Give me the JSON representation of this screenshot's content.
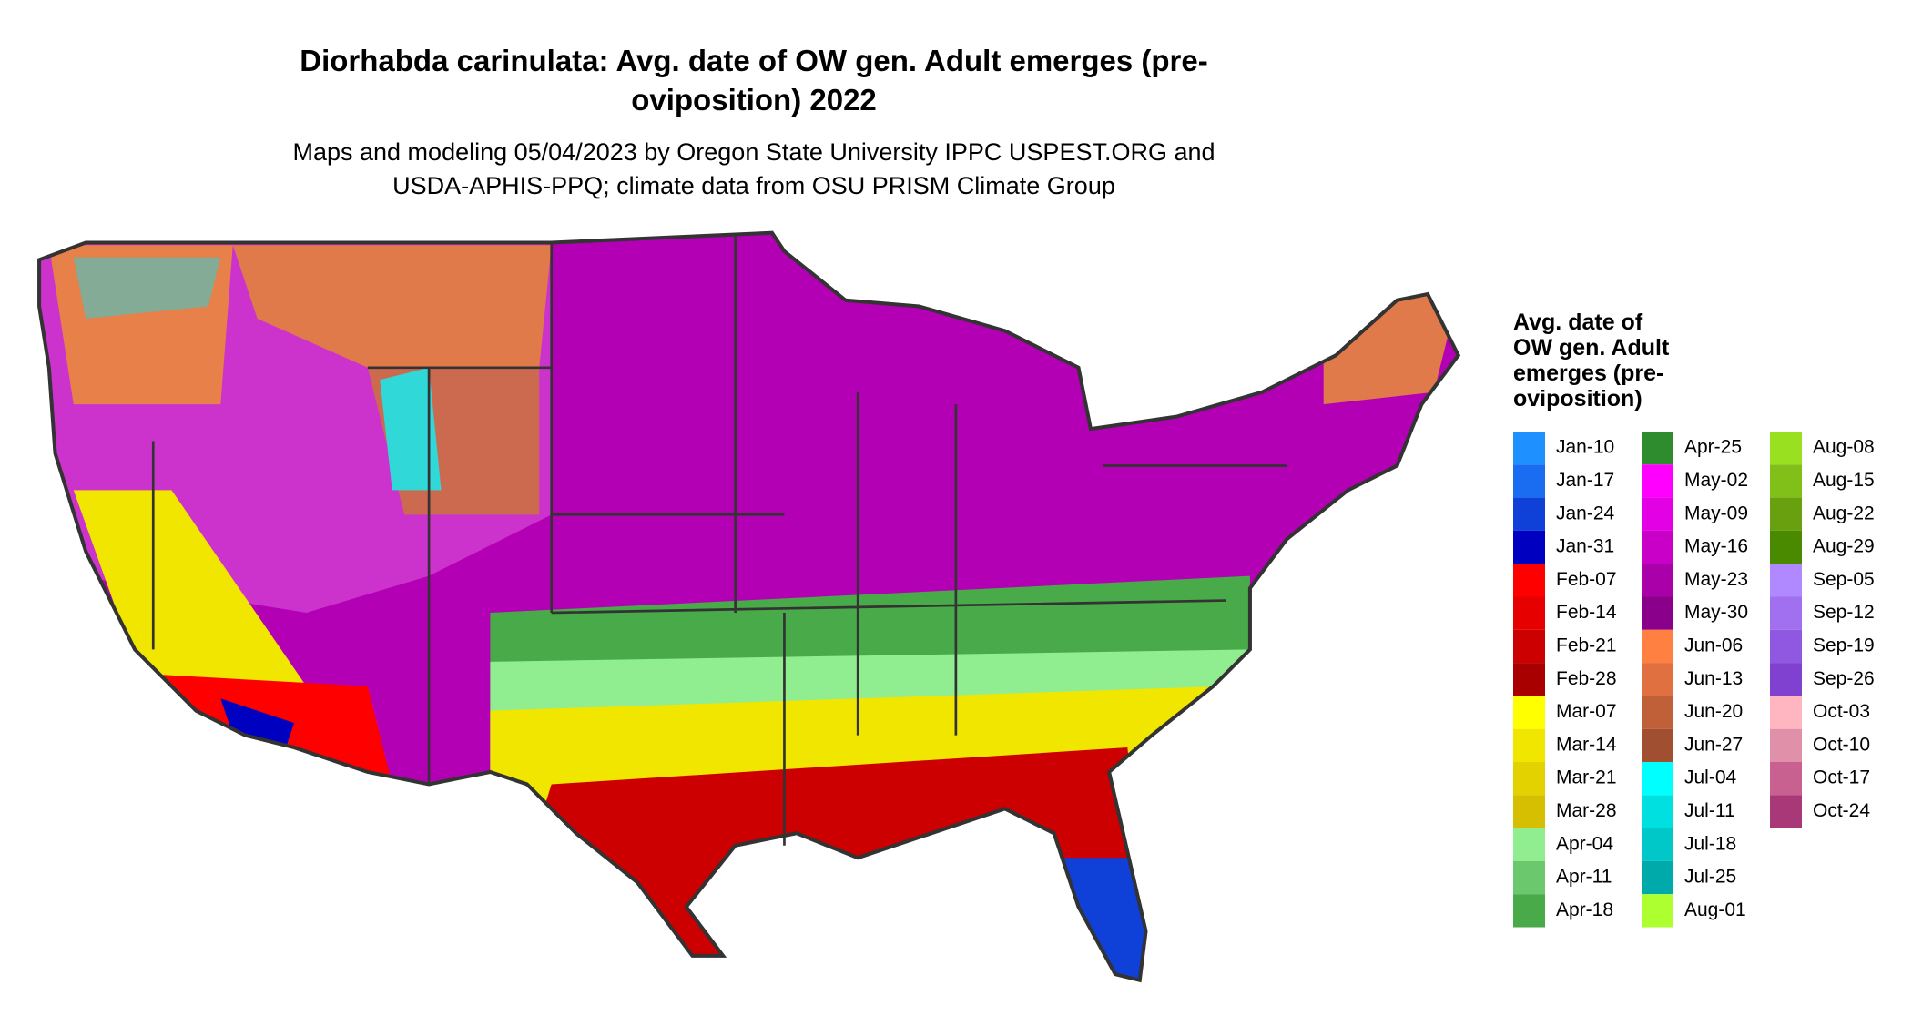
{
  "title": [
    "Diorhabda carinulata: Avg. date of OW gen. Adult emerges (pre-",
    "oviposition) 2022"
  ],
  "subtitle": [
    "Maps and modeling 05/04/2023 by Oregon State University IPPC USPEST.ORG and",
    "USDA-APHIS-PPQ; climate data from OSU PRISM Climate Group"
  ],
  "legend": {
    "title": [
      "Avg. date of",
      "OW gen. Adult",
      "emerges (pre-",
      "oviposition)"
    ],
    "items": [
      {
        "label": "Jan-10",
        "color": "#1e90ff"
      },
      {
        "label": "Jan-17",
        "color": "#1a6cf0"
      },
      {
        "label": "Jan-24",
        "color": "#0f40d8"
      },
      {
        "label": "Jan-31",
        "color": "#0000c0"
      },
      {
        "label": "Feb-07",
        "color": "#ff0000"
      },
      {
        "label": "Feb-14",
        "color": "#e60000"
      },
      {
        "label": "Feb-21",
        "color": "#cc0000"
      },
      {
        "label": "Feb-28",
        "color": "#a80000"
      },
      {
        "label": "Mar-07",
        "color": "#ffff00"
      },
      {
        "label": "Mar-14",
        "color": "#f0e600"
      },
      {
        "label": "Mar-21",
        "color": "#e3d200"
      },
      {
        "label": "Mar-28",
        "color": "#d6be00"
      },
      {
        "label": "Apr-04",
        "color": "#90ee90"
      },
      {
        "label": "Apr-11",
        "color": "#6cc86c"
      },
      {
        "label": "Apr-18",
        "color": "#48aa48"
      },
      {
        "label": "Apr-25",
        "color": "#2e8b2e"
      },
      {
        "label": "May-02",
        "color": "#ff00ff"
      },
      {
        "label": "May-09",
        "color": "#e400e4"
      },
      {
        "label": "May-16",
        "color": "#c800c8"
      },
      {
        "label": "May-23",
        "color": "#aa00aa"
      },
      {
        "label": "May-30",
        "color": "#8b008b"
      },
      {
        "label": "Jun-06",
        "color": "#ff8040"
      },
      {
        "label": "Jun-13",
        "color": "#e07040"
      },
      {
        "label": "Jun-20",
        "color": "#c06038"
      },
      {
        "label": "Jun-27",
        "color": "#a05030"
      },
      {
        "label": "Jul-04",
        "color": "#00ffff"
      },
      {
        "label": "Jul-11",
        "color": "#00e0e0"
      },
      {
        "label": "Jul-18",
        "color": "#00c8c8"
      },
      {
        "label": "Jul-25",
        "color": "#00aaaa"
      },
      {
        "label": "Aug-01",
        "color": "#adff2f"
      },
      {
        "label": "Aug-08",
        "color": "#98e020"
      },
      {
        "label": "Aug-15",
        "color": "#80c018"
      },
      {
        "label": "Aug-22",
        "color": "#68a010"
      },
      {
        "label": "Aug-29",
        "color": "#4a8a00"
      },
      {
        "label": "Sep-05",
        "color": "#b088ff"
      },
      {
        "label": "Sep-12",
        "color": "#a070f0"
      },
      {
        "label": "Sep-19",
        "color": "#9058e0"
      },
      {
        "label": "Sep-26",
        "color": "#8040d0"
      },
      {
        "label": "Oct-03",
        "color": "#ffb6c1"
      },
      {
        "label": "Oct-10",
        "color": "#e090a8"
      },
      {
        "label": "Oct-17",
        "color": "#c86090"
      },
      {
        "label": "Oct-24",
        "color": "#a83878"
      }
    ]
  }
}
